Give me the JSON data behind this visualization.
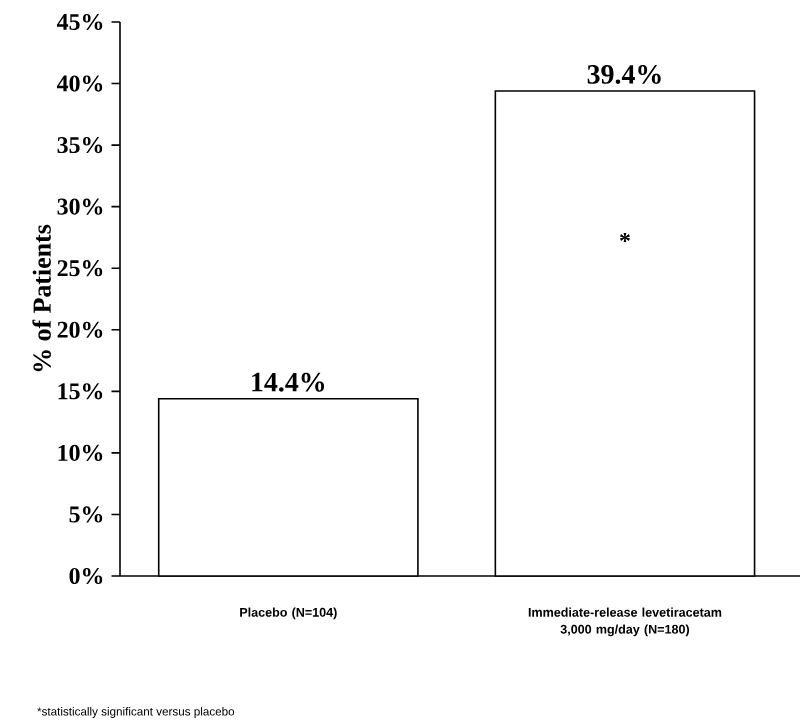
{
  "chart_data": {
    "type": "bar",
    "ylabel": "% of Patients",
    "categories": [
      "Placebo (N=104)",
      "Immediate-release levetiracetam 3,000 mg/day (N=180)"
    ],
    "values": [
      14.4,
      39.4
    ],
    "color": "#ffffff",
    "value_labels": [
      "14.4%",
      "39.4%"
    ],
    "ylim": [
      0,
      45
    ],
    "yticks": [
      {
        "value": 0,
        "label": "0%"
      },
      {
        "value": 5,
        "label": "5%"
      },
      {
        "value": 10,
        "label": "10%"
      },
      {
        "value": 15,
        "label": "15%"
      },
      {
        "value": 20,
        "label": "20%"
      },
      {
        "value": 25,
        "label": "25%"
      },
      {
        "value": 30,
        "label": "30%"
      },
      {
        "value": 35,
        "label": "35%"
      },
      {
        "value": 40,
        "label": "40%"
      },
      {
        "value": 45,
        "label": "45%"
      }
    ],
    "grid": false,
    "annotations": [
      "*",
      "*statistically significant versus placebo"
    ]
  }
}
